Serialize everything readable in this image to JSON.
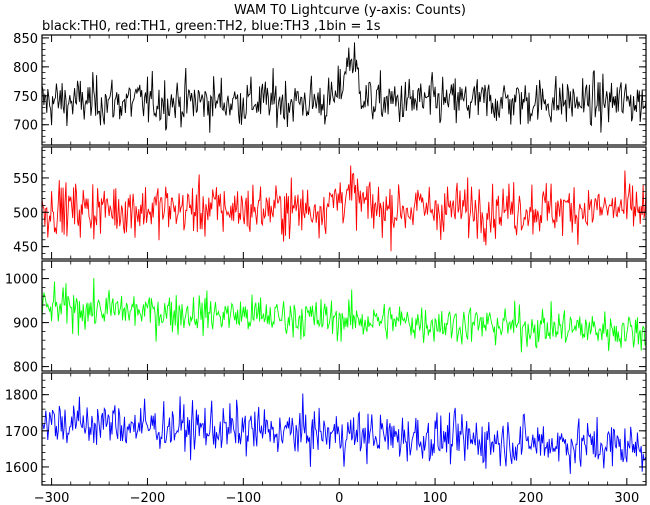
{
  "chart_data": {
    "type": "line",
    "title": "WAM T0 Lightcurve (y-axis: Counts)",
    "subtitle": "black:TH0, red:TH1, green:TH2, blue:TH3 ,1bin = 1s",
    "xlabel": "",
    "ylabel": "",
    "xlim": [
      -310,
      320
    ],
    "x_ticks": [
      -300,
      -200,
      -100,
      0,
      100,
      200,
      300
    ],
    "grid": false,
    "panels": [
      {
        "name": "TH0",
        "color": "#000000",
        "ylim": [
          665,
          855
        ],
        "y_ticks": [
          700,
          750,
          800,
          850
        ],
        "mean": 740,
        "noise": 28,
        "peak": {
          "x": 12,
          "width": 7,
          "height": 75
        }
      },
      {
        "name": "TH1",
        "color": "#ff0000",
        "ylim": [
          432,
          595
        ],
        "y_ticks": [
          450,
          500,
          550
        ],
        "mean": 505,
        "noise": 26,
        "peak": {
          "x": 8,
          "width": 12,
          "height": 22
        }
      },
      {
        "name": "TH2",
        "color": "#00ff00",
        "ylim": [
          790,
          1040
        ],
        "y_ticks": [
          800,
          900,
          1000
        ],
        "mean_start": 935,
        "mean_end": 880,
        "noise": 30,
        "peak": null
      },
      {
        "name": "TH3",
        "color": "#0000ff",
        "ylim": [
          1550,
          1860
        ],
        "y_ticks": [
          1600,
          1700,
          1800
        ],
        "mean_start": 1725,
        "mean_end": 1655,
        "noise": 45,
        "peak": null
      }
    ]
  }
}
